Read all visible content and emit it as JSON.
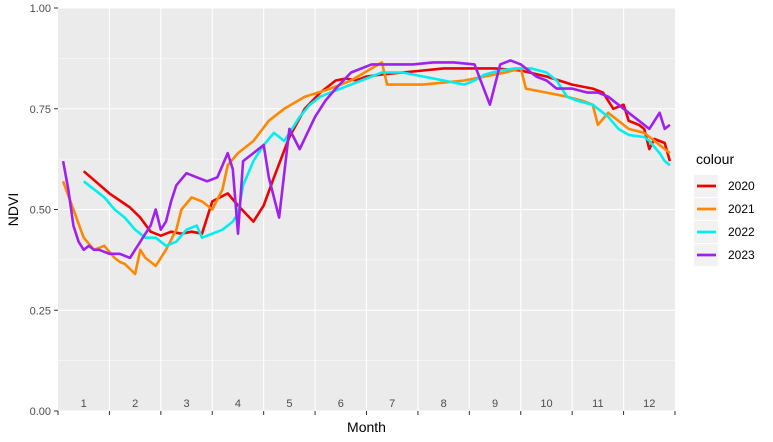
{
  "chart_data": {
    "type": "line",
    "xlabel": "Month",
    "ylabel": "NDVI",
    "xlim": [
      0.5,
      12.5
    ],
    "ylim": [
      0,
      1
    ],
    "y_ticks": [
      0.0,
      0.25,
      0.5,
      0.75,
      1.0
    ],
    "y_tick_labels": [
      "0.00",
      "0.25",
      "0.50",
      "0.75",
      "1.00"
    ],
    "x_tick_labels": [
      "1",
      "2",
      "3",
      "4",
      "5",
      "6",
      "7",
      "8",
      "9",
      "10",
      "11",
      "12"
    ],
    "grid": true,
    "legend_title": "colour",
    "legend_position": "right",
    "series": [
      {
        "name": "2020",
        "color": "#ee0000",
        "x": [
          1.0,
          1.5,
          1.9,
          2.1,
          2.3,
          2.5,
          2.7,
          2.9,
          3.1,
          3.3,
          3.5,
          3.8,
          4.0,
          4.3,
          4.5,
          4.7,
          5.0,
          5.3,
          5.6,
          5.9,
          6.1,
          6.3,
          6.5,
          6.8,
          7.2,
          7.6,
          8.0,
          8.5,
          9.0,
          9.5,
          10.0,
          10.5,
          10.9,
          11.1,
          11.3,
          11.5,
          11.6,
          11.8,
          11.9,
          12.0,
          12.1,
          12.2,
          12.3,
          12.4
        ],
        "y": [
          0.595,
          0.54,
          0.505,
          0.48,
          0.445,
          0.435,
          0.445,
          0.44,
          0.445,
          0.44,
          0.52,
          0.54,
          0.51,
          0.47,
          0.51,
          0.58,
          0.68,
          0.75,
          0.79,
          0.82,
          0.825,
          0.82,
          0.83,
          0.835,
          0.84,
          0.845,
          0.85,
          0.85,
          0.85,
          0.845,
          0.83,
          0.81,
          0.8,
          0.79,
          0.75,
          0.76,
          0.72,
          0.71,
          0.7,
          0.65,
          0.675,
          0.67,
          0.665,
          0.62
        ]
      },
      {
        "name": "2021",
        "color": "#ff8800",
        "x": [
          0.6,
          0.8,
          1.0,
          1.2,
          1.4,
          1.6,
          1.7,
          1.8,
          2.0,
          2.1,
          2.2,
          2.4,
          2.6,
          2.8,
          2.9,
          3.1,
          3.3,
          3.5,
          3.7,
          3.8,
          4.0,
          4.3,
          4.6,
          4.9,
          5.3,
          5.8,
          6.2,
          6.6,
          6.8,
          6.9,
          7.2,
          7.6,
          8.0,
          8.4,
          8.8,
          9.2,
          9.5,
          9.6,
          10.0,
          10.4,
          10.7,
          10.9,
          11.0,
          11.2,
          11.3,
          11.6,
          11.9,
          12.2,
          12.4
        ],
        "y": [
          0.57,
          0.5,
          0.43,
          0.4,
          0.41,
          0.38,
          0.37,
          0.365,
          0.34,
          0.4,
          0.38,
          0.36,
          0.4,
          0.45,
          0.5,
          0.53,
          0.52,
          0.5,
          0.55,
          0.61,
          0.64,
          0.67,
          0.72,
          0.75,
          0.78,
          0.8,
          0.82,
          0.85,
          0.865,
          0.81,
          0.81,
          0.81,
          0.815,
          0.82,
          0.83,
          0.84,
          0.85,
          0.8,
          0.79,
          0.78,
          0.77,
          0.76,
          0.71,
          0.74,
          0.73,
          0.7,
          0.69,
          0.66,
          0.64
        ]
      },
      {
        "name": "2022",
        "color": "#00eeee",
        "x": [
          1.0,
          1.2,
          1.4,
          1.6,
          1.8,
          2.0,
          2.2,
          2.4,
          2.6,
          2.8,
          3.0,
          3.2,
          3.3,
          3.5,
          3.7,
          3.9,
          4.0,
          4.1,
          4.3,
          4.5,
          4.7,
          4.9,
          5.0,
          5.2,
          5.4,
          5.6,
          5.8,
          6.0,
          6.2,
          6.4,
          6.8,
          7.2,
          7.6,
          8.0,
          8.4,
          8.6,
          8.8,
          9.1,
          9.4,
          9.7,
          10.0,
          10.2,
          10.4,
          10.6,
          10.9,
          11.0,
          11.2,
          11.4,
          11.6,
          11.9,
          12.0,
          12.2,
          12.3,
          12.4
        ],
        "y": [
          0.57,
          0.55,
          0.53,
          0.5,
          0.48,
          0.45,
          0.43,
          0.43,
          0.41,
          0.42,
          0.45,
          0.46,
          0.43,
          0.44,
          0.45,
          0.47,
          0.49,
          0.56,
          0.62,
          0.66,
          0.69,
          0.67,
          0.69,
          0.73,
          0.76,
          0.78,
          0.79,
          0.8,
          0.81,
          0.82,
          0.84,
          0.84,
          0.83,
          0.82,
          0.81,
          0.82,
          0.835,
          0.845,
          0.85,
          0.85,
          0.84,
          0.82,
          0.78,
          0.77,
          0.76,
          0.75,
          0.73,
          0.7,
          0.685,
          0.68,
          0.67,
          0.64,
          0.62,
          0.61
        ]
      },
      {
        "name": "2023",
        "color": "#a020f0",
        "x": [
          0.6,
          0.7,
          0.8,
          0.9,
          1.0,
          1.1,
          1.2,
          1.3,
          1.5,
          1.7,
          1.9,
          2.0,
          2.1,
          2.2,
          2.3,
          2.4,
          2.5,
          2.6,
          2.7,
          2.8,
          3.0,
          3.2,
          3.4,
          3.6,
          3.8,
          3.9,
          4.0,
          4.1,
          4.3,
          4.5,
          4.6,
          4.8,
          5.0,
          5.2,
          5.5,
          5.7,
          5.9,
          6.2,
          6.6,
          7.0,
          7.4,
          7.8,
          8.2,
          8.6,
          8.9,
          9.1,
          9.3,
          9.5,
          9.6,
          9.8,
          10.0,
          10.2,
          10.5,
          10.8,
          11.0,
          11.2,
          11.4,
          11.6,
          11.8,
          12.0,
          12.2,
          12.3,
          12.4
        ],
        "y": [
          0.62,
          0.55,
          0.46,
          0.42,
          0.4,
          0.41,
          0.4,
          0.4,
          0.39,
          0.39,
          0.38,
          0.4,
          0.42,
          0.44,
          0.46,
          0.5,
          0.45,
          0.47,
          0.52,
          0.56,
          0.59,
          0.58,
          0.57,
          0.58,
          0.64,
          0.6,
          0.44,
          0.62,
          0.64,
          0.66,
          0.58,
          0.48,
          0.7,
          0.65,
          0.73,
          0.77,
          0.8,
          0.84,
          0.86,
          0.86,
          0.86,
          0.865,
          0.865,
          0.86,
          0.76,
          0.86,
          0.87,
          0.86,
          0.85,
          0.83,
          0.82,
          0.8,
          0.8,
          0.79,
          0.79,
          0.78,
          0.76,
          0.74,
          0.72,
          0.7,
          0.74,
          0.7,
          0.71
        ]
      }
    ]
  }
}
